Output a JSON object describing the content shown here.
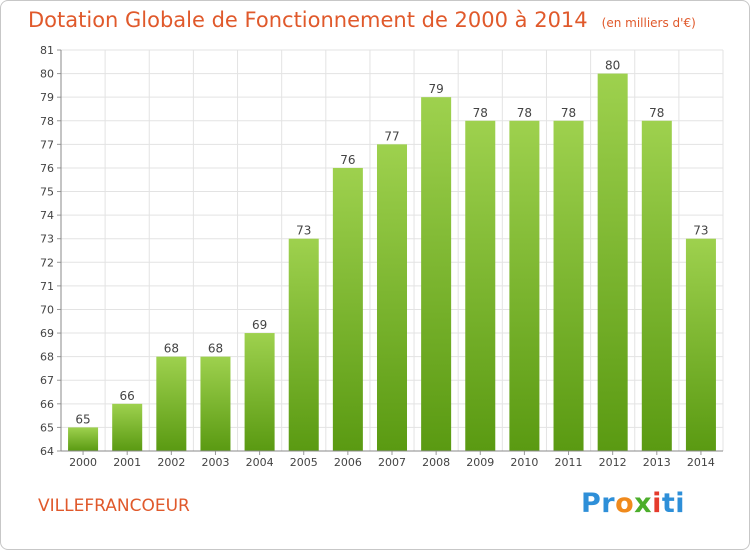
{
  "title": "Dotation Globale de Fonctionnement de 2000 à 2014",
  "unit_note": "(en milliers d'€)",
  "city": "VILLEFRANCOEUR",
  "logo": {
    "part1": "Pr",
    "part2": "o",
    "part3": "x",
    "part4": "i",
    "part5": "ti"
  },
  "colors": {
    "title": "#e0592b",
    "bar_top": "#9ed14e",
    "bar_bottom": "#5a9a12",
    "grid": "#e3e3e3"
  },
  "chart_data": {
    "type": "bar",
    "categories": [
      "2000",
      "2001",
      "2002",
      "2003",
      "2004",
      "2005",
      "2006",
      "2007",
      "2008",
      "2009",
      "2010",
      "2011",
      "2012",
      "2013",
      "2014"
    ],
    "values": [
      65,
      66,
      68,
      68,
      69,
      73,
      76,
      77,
      79,
      78,
      78,
      78,
      80,
      78,
      73
    ],
    "ylim": [
      64,
      81
    ],
    "yticks": [
      64,
      65,
      66,
      67,
      68,
      69,
      70,
      71,
      72,
      73,
      74,
      75,
      76,
      77,
      78,
      79,
      80,
      81
    ],
    "grid": true
  }
}
